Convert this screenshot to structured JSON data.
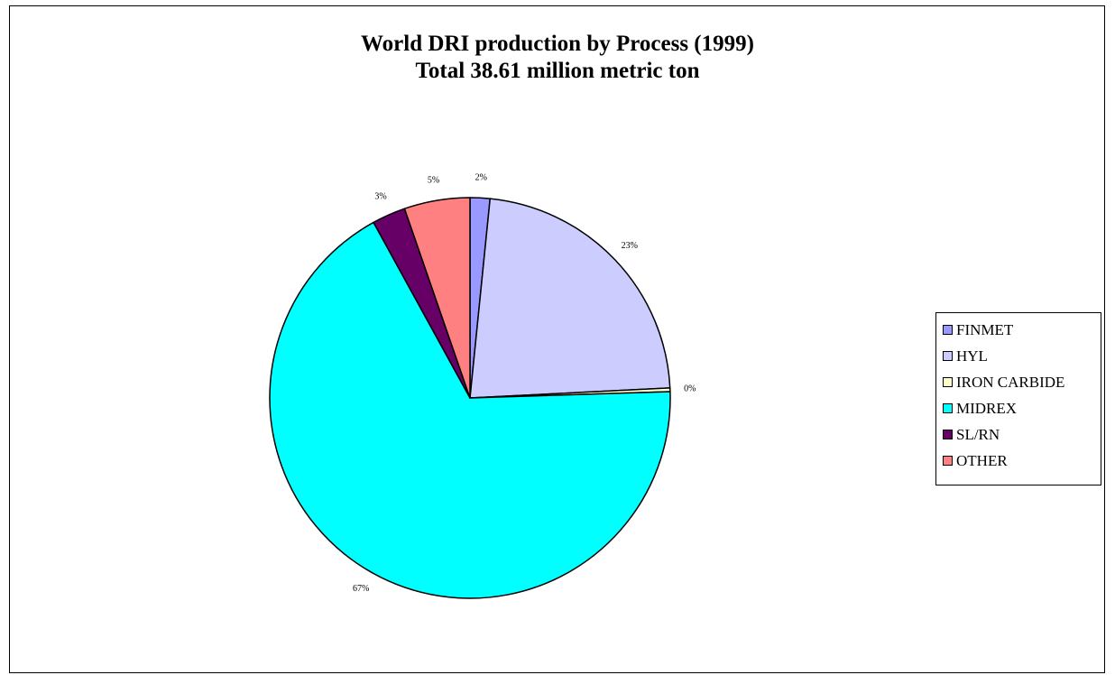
{
  "chart_data": {
    "type": "pie",
    "title_lines": [
      "World DRI production by Process (1999)",
      "Total 38.61 million metric ton"
    ],
    "slices": [
      {
        "name": "FINMET",
        "percent": 1.6,
        "label": "2%",
        "color": "#9999ff"
      },
      {
        "name": "HYL",
        "percent": 22.6,
        "label": "23%",
        "color": "#ccccff"
      },
      {
        "name": "IRON CARBIDE",
        "percent": 0.3,
        "label": "0%",
        "color": "#ffffcc"
      },
      {
        "name": "MIDREX",
        "percent": 67.5,
        "label": "67%",
        "color": "#00ffff"
      },
      {
        "name": "SL/RN",
        "percent": 2.7,
        "label": "3%",
        "color": "#660066"
      },
      {
        "name": "OTHER",
        "percent": 5.3,
        "label": "5%",
        "color": "#ff8080"
      }
    ],
    "legend_position": "right"
  }
}
